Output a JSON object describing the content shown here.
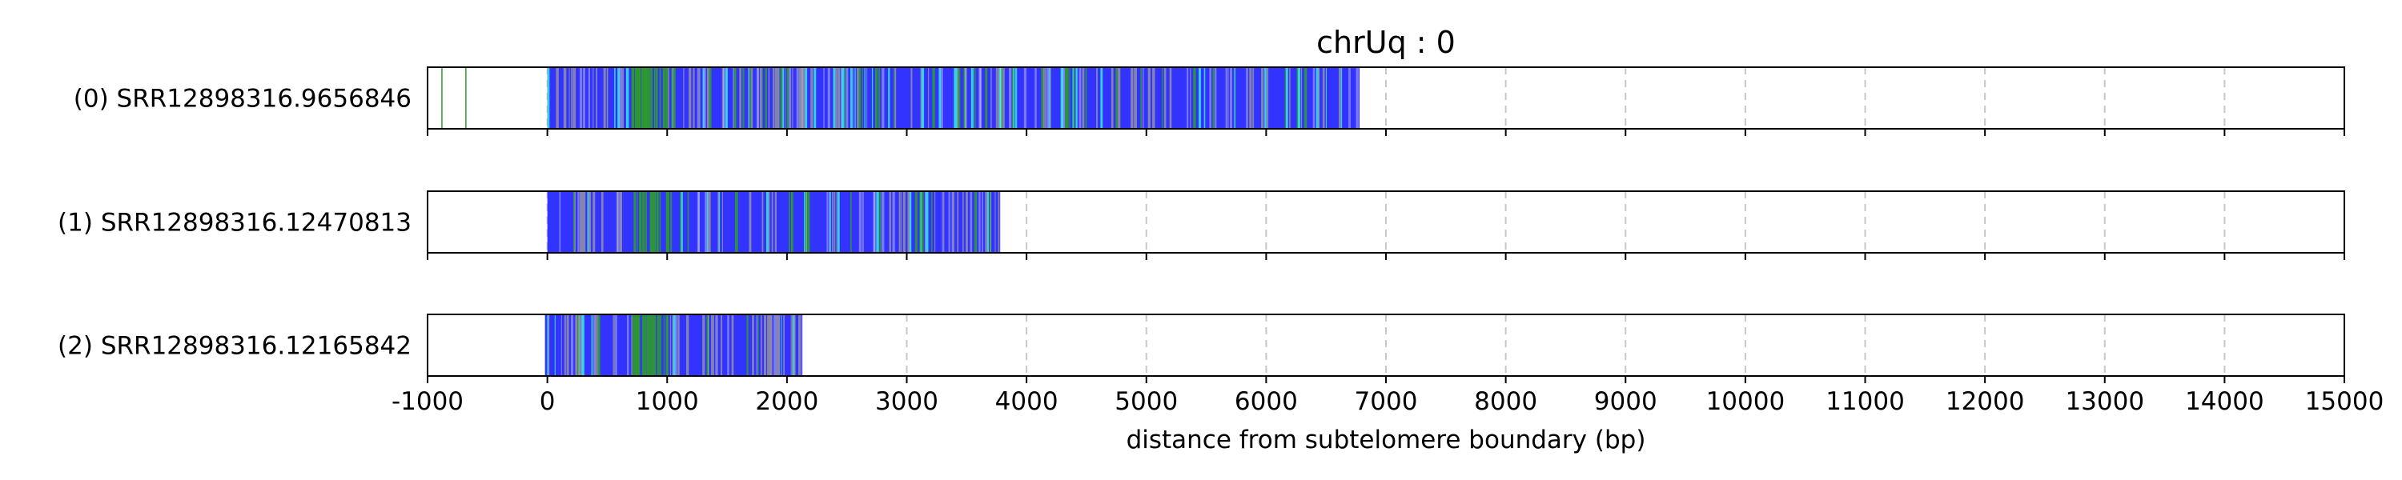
{
  "chart_data": {
    "type": "bar",
    "title": "chrUq : 0",
    "xlabel": "distance from subtelomere boundary (bp)",
    "ylabel": "",
    "xlim": [
      -1000,
      15000
    ],
    "xticks": [
      -1000,
      0,
      1000,
      2000,
      3000,
      4000,
      5000,
      6000,
      7000,
      8000,
      9000,
      10000,
      11000,
      12000,
      13000,
      14000,
      15000
    ],
    "grid": "vertical dashed",
    "colors": {
      "base": "#3333ff",
      "green": "#2e9a2e",
      "cyan": "#33e0e0",
      "grey": "#8c8ca8",
      "axis": "#000000",
      "grid": "#c8c8c8"
    },
    "reads": [
      {
        "label": "(0) SRR12898316.9656846",
        "start": 0,
        "end": 6780,
        "outliers": [
          -880,
          -680
        ]
      },
      {
        "label": "(1) SRR12898316.12470813",
        "start": 0,
        "end": 3780,
        "outliers": []
      },
      {
        "label": "(2) SRR12898316.12165842",
        "start": -20,
        "end": 2130,
        "outliers": []
      }
    ]
  }
}
